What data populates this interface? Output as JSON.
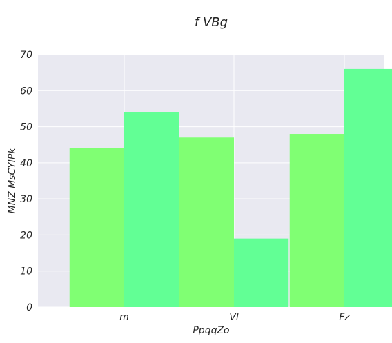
{
  "chart_data": {
    "type": "bar",
    "title": "f  VBg",
    "xlabel": "PpqqZo",
    "ylabel": "MNZ MsCYIPk",
    "categories": [
      "m",
      "Vl",
      "Fz"
    ],
    "series": [
      {
        "values": [
          44,
          47,
          48
        ],
        "color": "#80ff73"
      },
      {
        "values": [
          54,
          19,
          66
        ],
        "color": "#62ff95"
      }
    ],
    "ylim": [
      0,
      70
    ],
    "yticks": [
      0,
      10,
      20,
      30,
      40,
      50,
      60,
      70
    ],
    "grid": true,
    "legend": "none",
    "background_color": "#e9e9f1"
  }
}
